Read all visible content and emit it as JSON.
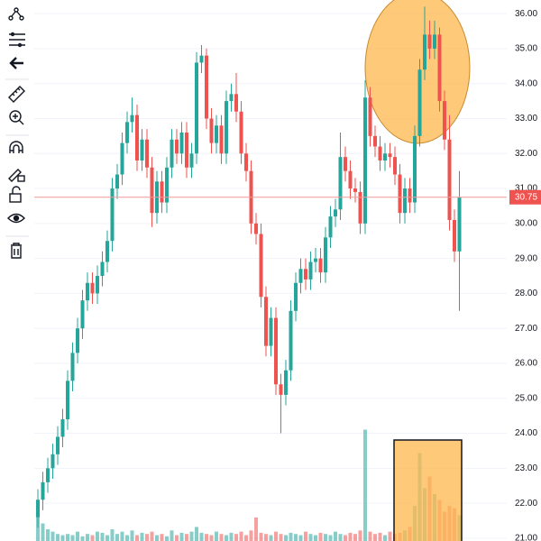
{
  "chart_data": {
    "type": "candlestick",
    "open": [
      21.6,
      22.1,
      22.6,
      23.0,
      23.4,
      23.9,
      24.4,
      25.5,
      26.3,
      27.0,
      27.8,
      28.3,
      28.0,
      28.5,
      28.9,
      29.5,
      31.0,
      31.4,
      32.3,
      32.9,
      33.1,
      31.8,
      32.4,
      31.6,
      30.3,
      31.2,
      30.6,
      31.6,
      32.4,
      32.0,
      32.6,
      31.6,
      32.0,
      34.6,
      34.8,
      33.0,
      32.3,
      32.8,
      32.0,
      33.5,
      33.7,
      33.2,
      32.0,
      31.5,
      30.0,
      29.7,
      27.9,
      26.5,
      27.3,
      25.4,
      25.1,
      25.8,
      27.5,
      28.3,
      28.7,
      28.4,
      28.9,
      29.0,
      28.6,
      29.6,
      30.2,
      30.4,
      31.9,
      31.5,
      31.0,
      30.9,
      30.0,
      33.6,
      32.5,
      32.2,
      31.8,
      32.0,
      31.9,
      31.4,
      30.3,
      31.0,
      30.6,
      32.5,
      34.4,
      35.4,
      35.0,
      35.4,
      33.5,
      32.4,
      30.1,
      29.2
    ],
    "high": [
      22.4,
      22.9,
      23.3,
      23.7,
      24.2,
      24.7,
      25.8,
      26.6,
      27.3,
      28.1,
      28.6,
      28.6,
      28.8,
      29.2,
      29.8,
      31.3,
      31.7,
      32.6,
      33.2,
      33.6,
      33.4,
      32.7,
      32.7,
      31.9,
      31.5,
      31.5,
      31.9,
      32.7,
      32.7,
      32.9,
      32.9,
      32.3,
      34.9,
      35.1,
      35.0,
      33.3,
      33.1,
      33.1,
      33.8,
      34.0,
      34.3,
      33.5,
      32.3,
      31.8,
      30.3,
      30.0,
      28.2,
      27.6,
      27.6,
      25.7,
      26.1,
      27.8,
      28.6,
      29.0,
      29.0,
      29.2,
      29.3,
      29.3,
      29.9,
      30.5,
      30.7,
      32.6,
      32.2,
      31.8,
      31.3,
      31.2,
      34.1,
      33.9,
      32.8,
      32.5,
      32.3,
      32.3,
      32.2,
      31.7,
      31.3,
      31.3,
      32.8,
      34.7,
      36.2,
      35.8,
      35.8,
      35.6,
      33.8,
      33.1,
      30.4,
      31.5
    ],
    "low": [
      21.3,
      21.8,
      22.3,
      22.7,
      23.1,
      23.6,
      24.1,
      25.2,
      26.0,
      26.7,
      27.5,
      27.7,
      27.7,
      28.2,
      28.6,
      29.2,
      30.7,
      31.1,
      32.0,
      32.6,
      31.5,
      31.5,
      31.3,
      29.9,
      30.0,
      30.3,
      30.3,
      31.3,
      31.7,
      31.7,
      31.3,
      31.3,
      31.7,
      34.3,
      32.7,
      32.0,
      32.0,
      31.7,
      31.7,
      33.2,
      32.9,
      31.7,
      31.2,
      29.7,
      29.4,
      27.6,
      26.2,
      26.2,
      25.1,
      24.0,
      24.8,
      25.5,
      27.2,
      28.0,
      28.1,
      28.1,
      28.6,
      28.3,
      28.3,
      29.3,
      29.9,
      30.1,
      31.2,
      30.7,
      30.6,
      29.7,
      29.7,
      32.2,
      31.9,
      31.5,
      31.5,
      31.6,
      31.1,
      30.0,
      30.0,
      30.3,
      30.3,
      32.2,
      34.1,
      34.7,
      34.7,
      33.2,
      32.1,
      29.8,
      28.9,
      27.5
    ],
    "close": [
      22.1,
      22.6,
      23.0,
      23.4,
      23.9,
      24.4,
      25.5,
      26.3,
      27.0,
      27.8,
      28.3,
      28.0,
      28.5,
      28.9,
      29.5,
      31.0,
      31.4,
      32.3,
      32.9,
      33.1,
      31.8,
      32.4,
      31.6,
      30.3,
      31.2,
      30.6,
      31.6,
      32.4,
      32.0,
      32.6,
      31.6,
      32.0,
      34.6,
      34.8,
      33.0,
      32.3,
      32.8,
      32.0,
      33.5,
      33.7,
      33.2,
      32.0,
      31.5,
      30.0,
      29.7,
      27.9,
      26.5,
      27.3,
      25.4,
      25.1,
      25.8,
      27.5,
      28.3,
      28.7,
      28.4,
      28.9,
      29.0,
      28.6,
      29.6,
      30.2,
      30.4,
      31.9,
      31.5,
      31.0,
      30.9,
      30.0,
      33.6,
      32.5,
      32.2,
      31.8,
      32.0,
      31.9,
      31.4,
      30.3,
      31.0,
      30.6,
      32.5,
      34.4,
      35.4,
      35.0,
      35.4,
      33.5,
      32.4,
      30.1,
      29.2,
      30.75
    ],
    "volume": [
      25,
      15,
      10,
      8,
      6,
      5,
      6,
      5,
      8,
      4,
      6,
      5,
      8,
      7,
      5,
      10,
      6,
      8,
      5,
      9,
      5,
      7,
      6,
      8,
      5,
      6,
      4,
      9,
      5,
      7,
      6,
      8,
      12,
      7,
      6,
      5,
      8,
      6,
      5,
      7,
      6,
      8,
      5,
      9,
      20,
      7,
      6,
      5,
      8,
      6,
      5,
      7,
      6,
      5,
      8,
      6,
      5,
      7,
      6,
      5,
      8,
      6,
      5,
      7,
      6,
      9,
      95,
      8,
      6,
      7,
      5,
      8,
      6,
      7,
      9,
      12,
      30,
      75,
      45,
      55,
      40,
      35,
      25,
      30,
      28,
      22
    ],
    "up_color": "#26a69a",
    "down_color": "#ef5350",
    "ylim": [
      20.92,
      36.39
    ],
    "yticks": [
      {
        "value": 21,
        "label": "21.00"
      },
      {
        "value": 22,
        "label": "22.00"
      },
      {
        "value": 23,
        "label": "23.00"
      },
      {
        "value": 24,
        "label": "24.00"
      },
      {
        "value": 25,
        "label": "25.00"
      },
      {
        "value": 26,
        "label": "26.00"
      },
      {
        "value": 27,
        "label": "27.00"
      },
      {
        "value": 28,
        "label": "28.00"
      },
      {
        "value": 29,
        "label": "29.00"
      },
      {
        "value": 30,
        "label": "30.00"
      },
      {
        "value": 31,
        "label": "31.00"
      },
      {
        "value": 32,
        "label": "32.00"
      },
      {
        "value": 33,
        "label": "33.00"
      },
      {
        "value": 34,
        "label": "34.00"
      },
      {
        "value": 35,
        "label": "35.00"
      },
      {
        "value": 36,
        "label": "36.00"
      }
    ],
    "y2lim": [
      0,
      100
    ],
    "last_price": 30.75,
    "grid": true
  }
}
